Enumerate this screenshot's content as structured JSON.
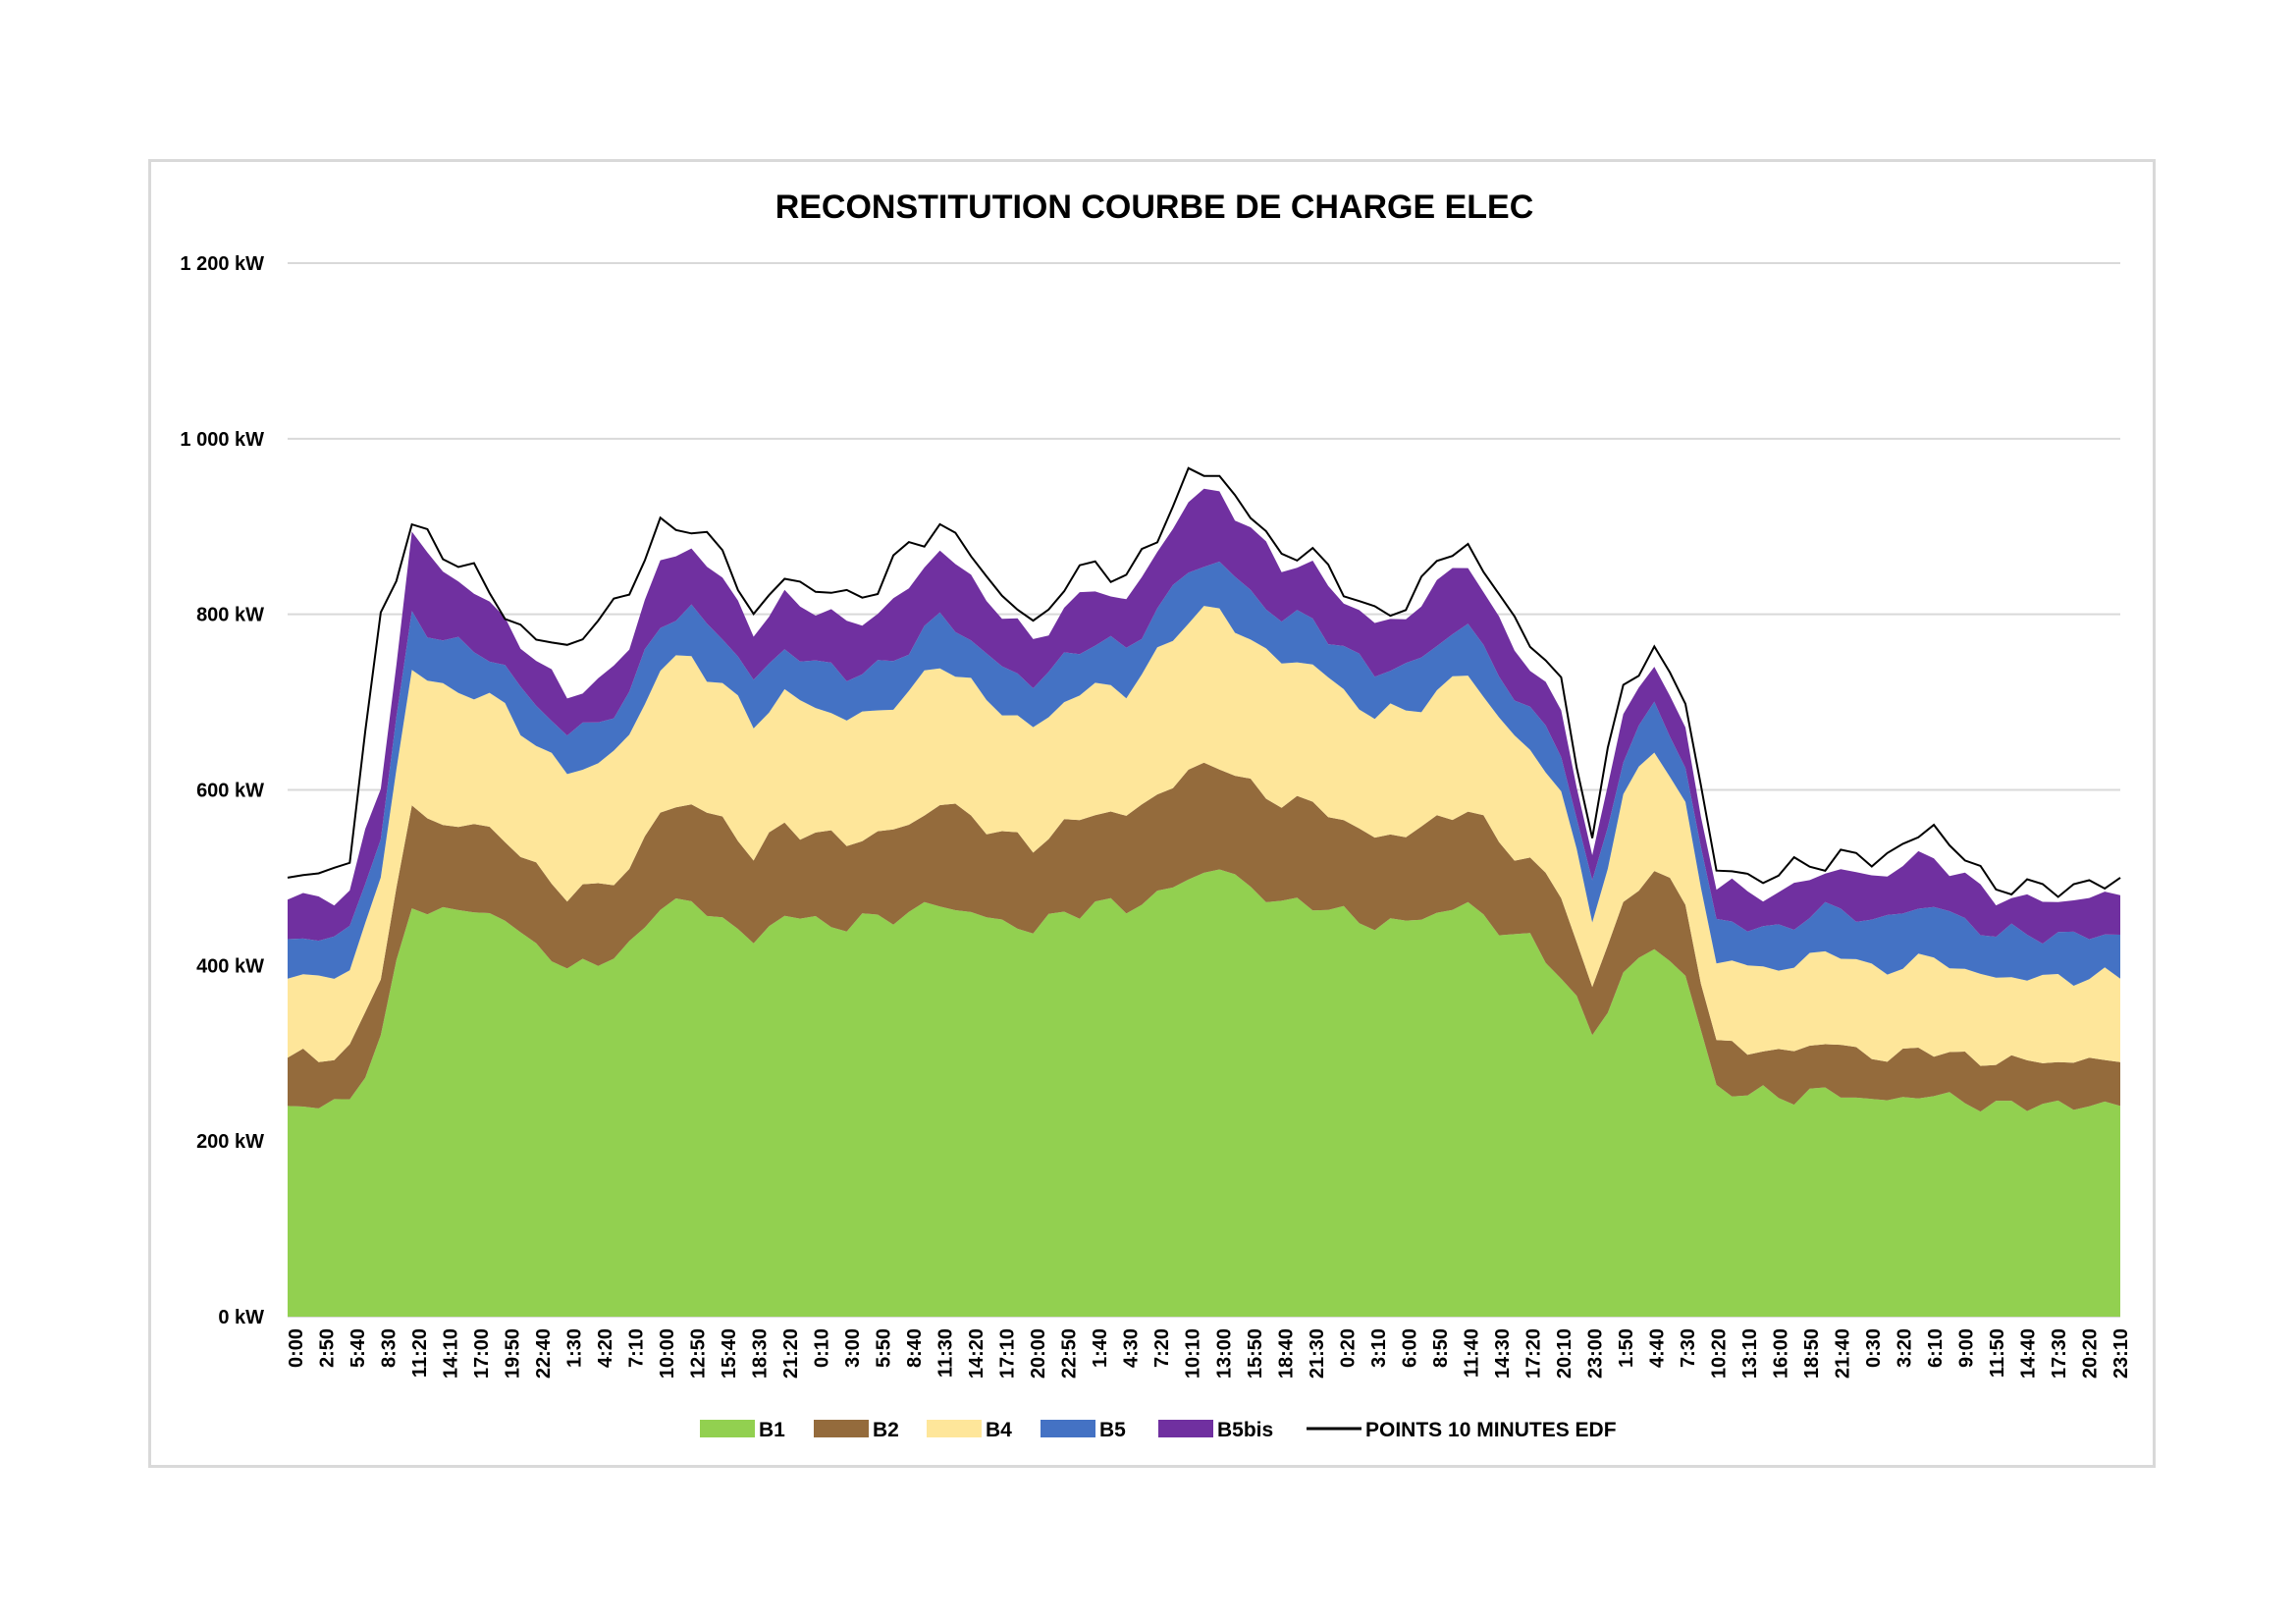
{
  "chart_data": {
    "type": "area",
    "stacked": true,
    "title": "RECONSTITUTION COURBE DE CHARGE ELEC",
    "xlabel": "",
    "ylabel": "",
    "ylim": [
      0,
      1200
    ],
    "y_unit": "kW",
    "y_ticks": [
      {
        "value": 0,
        "label": "0 kW"
      },
      {
        "value": 200,
        "label": "200 kW"
      },
      {
        "value": 400,
        "label": "400 kW"
      },
      {
        "value": 600,
        "label": "600 kW"
      },
      {
        "value": 800,
        "label": "800 kW"
      },
      {
        "value": 1000,
        "label": "1 000 kW"
      },
      {
        "value": 1200,
        "label": "1 200 kW"
      }
    ],
    "x_tick_labels": [
      "0:00",
      "2:50",
      "5:40",
      "8:30",
      "11:20",
      "14:10",
      "17:00",
      "19:50",
      "22:40",
      "1:30",
      "4:20",
      "7:10",
      "10:00",
      "12:50",
      "15:40",
      "18:30",
      "21:20",
      "0:10",
      "3:00",
      "5:50",
      "8:40",
      "11:30",
      "14:20",
      "17:10",
      "20:00",
      "22:50",
      "1:40",
      "4:30",
      "7:20",
      "10:10",
      "13:00",
      "15:50",
      "18:40",
      "21:30",
      "0:20",
      "3:10",
      "6:00",
      "8:50",
      "11:40",
      "14:30",
      "17:20",
      "20:10",
      "23:00",
      "1:50",
      "4:40",
      "7:30",
      "10:20",
      "13:10",
      "16:00",
      "18:50",
      "21:40",
      "0:30",
      "3:20",
      "6:10",
      "9:00",
      "11:50",
      "14:40",
      "17:30",
      "20:20",
      "23:10"
    ],
    "x_step_minutes": 170,
    "grid": true,
    "legend_position": "bottom",
    "series": [
      {
        "name": "B1",
        "type": "area",
        "color": "#92d050",
        "values": [
          240,
          240,
          245,
          320,
          470,
          460,
          465,
          450,
          425,
          395,
          405,
          420,
          470,
          470,
          455,
          425,
          460,
          450,
          445,
          455,
          460,
          470,
          460,
          450,
          440,
          460,
          470,
          465,
          480,
          500,
          510,
          490,
          470,
          470,
          460,
          445,
          450,
          460,
          470,
          440,
          430,
          390,
          320,
          390,
          420,
          390,
          260,
          255,
          250,
          255,
          255,
          245,
          250,
          252,
          245,
          240,
          242,
          240,
          242,
          240
        ]
      },
      {
        "name": "B2",
        "type": "area",
        "color": "#946b3c",
        "values": [
          55,
          55,
          58,
          70,
          110,
          100,
          95,
          95,
          85,
          85,
          85,
          90,
          105,
          115,
          110,
          100,
          100,
          100,
          95,
          95,
          100,
          115,
          110,
          100,
          95,
          100,
          105,
          105,
          115,
          120,
          120,
          115,
          115,
          115,
          105,
          100,
          100,
          105,
          110,
          100,
          90,
          90,
          55,
          80,
          90,
          80,
          50,
          50,
          50,
          55,
          55,
          50,
          50,
          52,
          50,
          50,
          50,
          50,
          50,
          50
        ]
      },
      {
        "name": "B4",
        "type": "area",
        "color": "#fee69a",
        "values": [
          90,
          90,
          92,
          110,
          160,
          155,
          150,
          150,
          140,
          140,
          140,
          150,
          165,
          165,
          155,
          150,
          150,
          145,
          140,
          140,
          150,
          160,
          150,
          140,
          135,
          140,
          145,
          140,
          160,
          175,
          175,
          165,
          160,
          160,
          145,
          140,
          140,
          145,
          155,
          140,
          125,
          120,
          75,
          120,
          140,
          110,
          95,
          95,
          95,
          100,
          105,
          100,
          100,
          105,
          100,
          95,
          95,
          95,
          95,
          95
        ]
      },
      {
        "name": "B5",
        "type": "area",
        "color": "#4472c4",
        "values": [
          45,
          45,
          45,
          50,
          60,
          55,
          50,
          45,
          45,
          45,
          45,
          50,
          50,
          55,
          55,
          50,
          50,
          50,
          50,
          50,
          50,
          55,
          50,
          50,
          50,
          50,
          50,
          50,
          50,
          55,
          55,
          55,
          50,
          50,
          50,
          50,
          50,
          55,
          55,
          50,
          45,
          45,
          40,
          45,
          50,
          45,
          45,
          45,
          45,
          48,
          50,
          55,
          60,
          60,
          55,
          50,
          50,
          48,
          48,
          50
        ]
      },
      {
        "name": "B5bis",
        "type": "area",
        "color": "#7030a0",
        "values": [
          45,
          45,
          45,
          55,
          90,
          80,
          65,
          55,
          50,
          45,
          45,
          55,
          70,
          70,
          65,
          55,
          60,
          60,
          60,
          60,
          70,
          75,
          70,
          60,
          50,
          55,
          60,
          55,
          65,
          80,
          80,
          70,
          60,
          60,
          55,
          55,
          55,
          70,
          70,
          60,
          50,
          45,
          35,
          50,
          45,
          40,
          40,
          40,
          40,
          42,
          45,
          50,
          55,
          55,
          50,
          40,
          40,
          40,
          42,
          45
        ]
      },
      {
        "name": "POINTS 10 MINUTES EDF",
        "type": "line",
        "color": "#000000",
        "values": [
          500,
          505,
          520,
          800,
          900,
          870,
          850,
          800,
          770,
          765,
          790,
          830,
          900,
          900,
          870,
          800,
          840,
          830,
          820,
          830,
          880,
          900,
          870,
          820,
          790,
          830,
          860,
          840,
          890,
          960,
          960,
          910,
          870,
          870,
          830,
          800,
          810,
          860,
          880,
          820,
          770,
          720,
          550,
          720,
          760,
          700,
          510,
          500,
          505,
          515,
          525,
          520,
          535,
          560,
          520,
          490,
          490,
          488,
          490,
          500
        ]
      }
    ]
  }
}
